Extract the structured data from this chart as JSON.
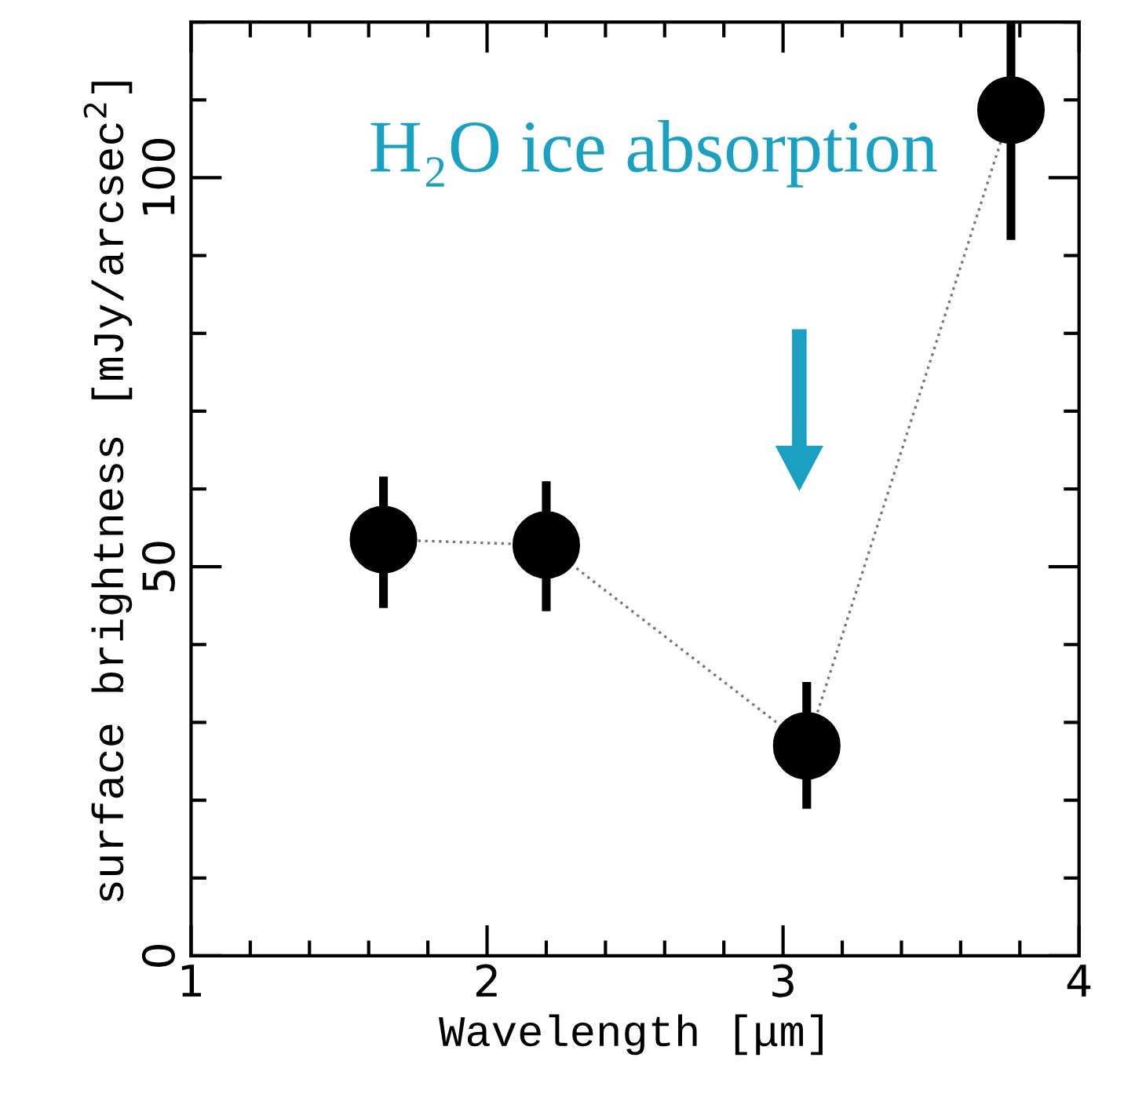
{
  "chart_data": {
    "type": "scatter",
    "xlabel": "Wavelength [μm]",
    "ylabel": "surface brightness [mJy/arcsec$^{2}$]",
    "x": [
      1.65,
      2.2,
      3.08,
      3.77
    ],
    "series": [
      {
        "color": "#000000",
        "values": [
          53.5,
          52.8,
          27,
          108.7
        ],
        "errors": [
          [
            44.7,
            61.6
          ],
          [
            44.3,
            61
          ],
          [
            18.9,
            35.2
          ],
          [
            92,
            120
          ]
        ]
      }
    ],
    "xlim": [
      1,
      4
    ],
    "ylim": [
      0,
      120
    ],
    "xticks": [
      1,
      2,
      3,
      4
    ],
    "yticks": [
      0,
      50,
      100
    ],
    "marker": "circle",
    "line_style": "dotted",
    "grid": false,
    "legend": false,
    "annotations": [
      "H₂O ice absorption"
    ]
  }
}
